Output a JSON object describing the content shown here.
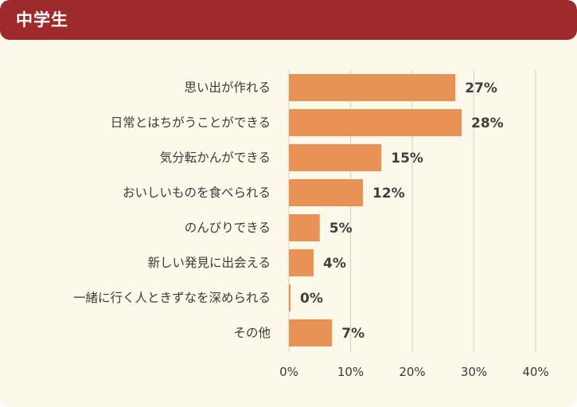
{
  "header": {
    "title": "中学生"
  },
  "chart_data": {
    "type": "bar",
    "orientation": "horizontal",
    "categories": [
      "思い出が作れる",
      "日常とはちがうことができる",
      "気分転かんができる",
      "おいしいものを食べられる",
      "のんびりできる",
      "新しい発見に出会える",
      "一緒に行く人ときずなを深められる",
      "その他"
    ],
    "values": [
      27,
      28,
      15,
      12,
      5,
      4,
      0,
      7
    ],
    "value_labels": [
      "27%",
      "28%",
      "15%",
      "12%",
      "5%",
      "4%",
      "0%",
      "7%"
    ],
    "xlim": [
      0,
      40
    ],
    "ticks": [
      0,
      10,
      20,
      30,
      40
    ],
    "tick_labels": [
      "0%",
      "10%",
      "20%",
      "30%",
      "40%"
    ],
    "grid": true,
    "colors": {
      "bar": "#e89256",
      "grid": "#d9d6cc",
      "header": "#9e2a2b"
    }
  }
}
